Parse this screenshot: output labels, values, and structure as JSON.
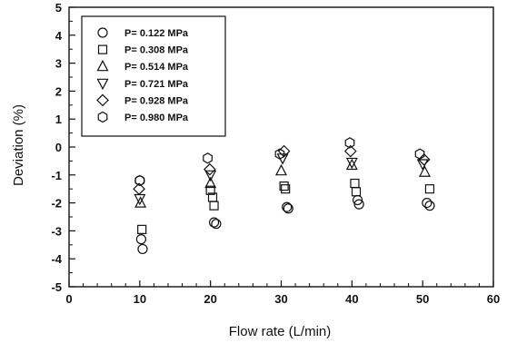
{
  "chart_data": {
    "type": "scatter",
    "xlabel": "Flow rate (L/min)",
    "ylabel": "Deviation (%)",
    "xlim": [
      0,
      60
    ],
    "ylim": [
      -5,
      5
    ],
    "xticks": [
      0,
      10,
      20,
      30,
      40,
      50,
      60
    ],
    "yticks": [
      -5,
      -4,
      -3,
      -2,
      -1,
      0,
      1,
      2,
      3,
      4,
      5
    ],
    "grid": false,
    "legend_position": "top-left",
    "series": [
      {
        "name": "P= 0.122 MPa",
        "marker": "circle",
        "points": [
          [
            10,
            -1.2
          ],
          [
            10.2,
            -3.3
          ],
          [
            10.4,
            -3.65
          ],
          [
            20.5,
            -2.7
          ],
          [
            20.8,
            -2.75
          ],
          [
            30.8,
            -2.15
          ],
          [
            31.0,
            -2.2
          ],
          [
            40.8,
            -1.9
          ],
          [
            41.0,
            -2.05
          ],
          [
            50.6,
            -2.0
          ],
          [
            51.0,
            -2.1
          ]
        ]
      },
      {
        "name": "P= 0.308 MPa",
        "marker": "square",
        "points": [
          [
            10.3,
            -2.95
          ],
          [
            20.0,
            -1.55
          ],
          [
            20.3,
            -1.8
          ],
          [
            20.5,
            -2.1
          ],
          [
            30.4,
            -1.4
          ],
          [
            30.6,
            -1.5
          ],
          [
            40.4,
            -1.3
          ],
          [
            40.6,
            -1.6
          ],
          [
            51.0,
            -1.5
          ]
        ]
      },
      {
        "name": "P= 0.514 MPa",
        "marker": "triangle-up",
        "points": [
          [
            10.1,
            -2.0
          ],
          [
            20.0,
            -1.3
          ],
          [
            30.0,
            -0.85
          ],
          [
            40.0,
            -0.65
          ],
          [
            50.3,
            -0.9
          ]
        ]
      },
      {
        "name": "P= 0.721 MPa",
        "marker": "triangle-down",
        "points": [
          [
            10.0,
            -1.85
          ],
          [
            20.0,
            -1.0
          ],
          [
            30.2,
            -0.4
          ],
          [
            40.0,
            -0.55
          ],
          [
            50.0,
            -0.6
          ]
        ]
      },
      {
        "name": "P= 0.928 MPa",
        "marker": "diamond",
        "points": [
          [
            9.9,
            -1.5
          ],
          [
            19.9,
            -0.8
          ],
          [
            30.4,
            -0.15
          ],
          [
            39.8,
            -0.15
          ],
          [
            50.2,
            -0.45
          ]
        ]
      },
      {
        "name": "P= 0.980 MPa",
        "marker": "hexagon",
        "points": [
          [
            10.0,
            -1.2
          ],
          [
            19.6,
            -0.4
          ],
          [
            29.8,
            -0.25
          ],
          [
            39.7,
            0.15
          ],
          [
            49.6,
            -0.25
          ]
        ]
      }
    ]
  }
}
